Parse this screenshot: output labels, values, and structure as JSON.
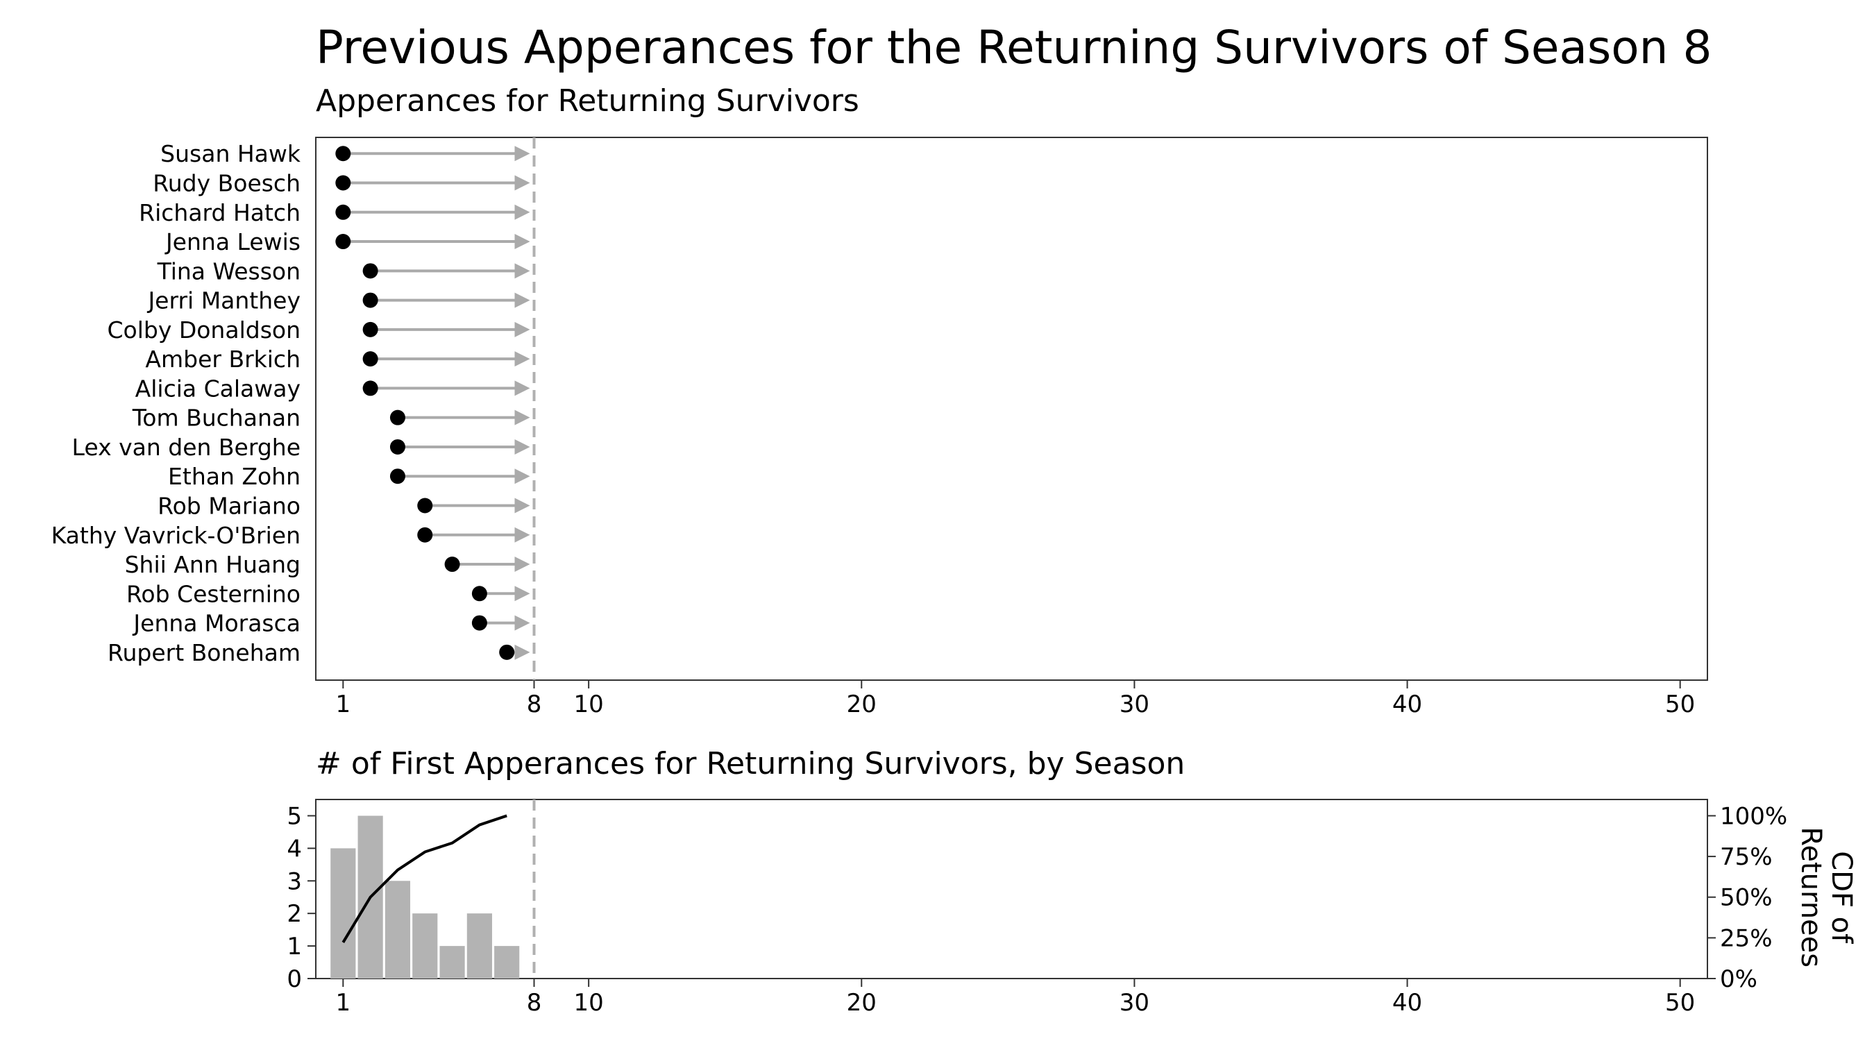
{
  "title": "Previous Apperances for the Returning Survivors of Season 8",
  "chart_data": [
    {
      "type": "dot-arrow",
      "subtitle": "Apperances for Returning Survivors",
      "current_season": 8,
      "xlim": [
        0,
        51
      ],
      "x_ticks": [
        1,
        8,
        10,
        20,
        30,
        40,
        50
      ],
      "people": [
        {
          "name": "Susan Hawk",
          "first_season": 1
        },
        {
          "name": "Rudy Boesch",
          "first_season": 1
        },
        {
          "name": "Richard Hatch",
          "first_season": 1
        },
        {
          "name": "Jenna Lewis",
          "first_season": 1
        },
        {
          "name": "Tina Wesson",
          "first_season": 2
        },
        {
          "name": "Jerri Manthey",
          "first_season": 2
        },
        {
          "name": "Colby Donaldson",
          "first_season": 2
        },
        {
          "name": "Amber Brkich",
          "first_season": 2
        },
        {
          "name": "Alicia Calaway",
          "first_season": 2
        },
        {
          "name": "Tom Buchanan",
          "first_season": 3
        },
        {
          "name": "Lex van den Berghe",
          "first_season": 3
        },
        {
          "name": "Ethan Zohn",
          "first_season": 3
        },
        {
          "name": "Rob Mariano",
          "first_season": 4
        },
        {
          "name": "Kathy Vavrick-O'Brien",
          "first_season": 4
        },
        {
          "name": "Shii Ann Huang",
          "first_season": 5
        },
        {
          "name": "Rob Cesternino",
          "first_season": 6
        },
        {
          "name": "Jenna Morasca",
          "first_season": 6
        },
        {
          "name": "Rupert Boneham",
          "first_season": 7
        }
      ]
    },
    {
      "type": "bar",
      "subtitle": "# of First Apperances for Returning Survivors, by Season",
      "current_season": 8,
      "xlim": [
        0,
        51
      ],
      "x_ticks": [
        1,
        8,
        10,
        20,
        30,
        40,
        50
      ],
      "ylim": [
        0,
        5.5
      ],
      "y_ticks": [
        0,
        1,
        2,
        3,
        4,
        5
      ],
      "x": [
        1,
        2,
        3,
        4,
        5,
        6,
        7
      ],
      "values": [
        4,
        5,
        3,
        2,
        1,
        2,
        1
      ],
      "secondary_axis": {
        "type": "line",
        "ylabel": "CDF of Returnees",
        "ylabel_lines": [
          "CDF of",
          "Returnees"
        ],
        "ylim": [
          0,
          1
        ],
        "ticks": [
          0,
          0.25,
          0.5,
          0.75,
          1
        ],
        "tick_labels": [
          "0%",
          "25%",
          "50%",
          "75%",
          "100%"
        ],
        "x": [
          1,
          2,
          3,
          4,
          5,
          6,
          7
        ],
        "values": [
          0.222,
          0.5,
          0.667,
          0.778,
          0.833,
          0.944,
          1.0
        ]
      }
    }
  ],
  "colors": {
    "dot": "#000000",
    "arrow": "#aaaaaa",
    "bar": "#b3b3b3",
    "cdf_line": "#000000",
    "season_line": "#b0b0b0",
    "frame": "#333333"
  }
}
